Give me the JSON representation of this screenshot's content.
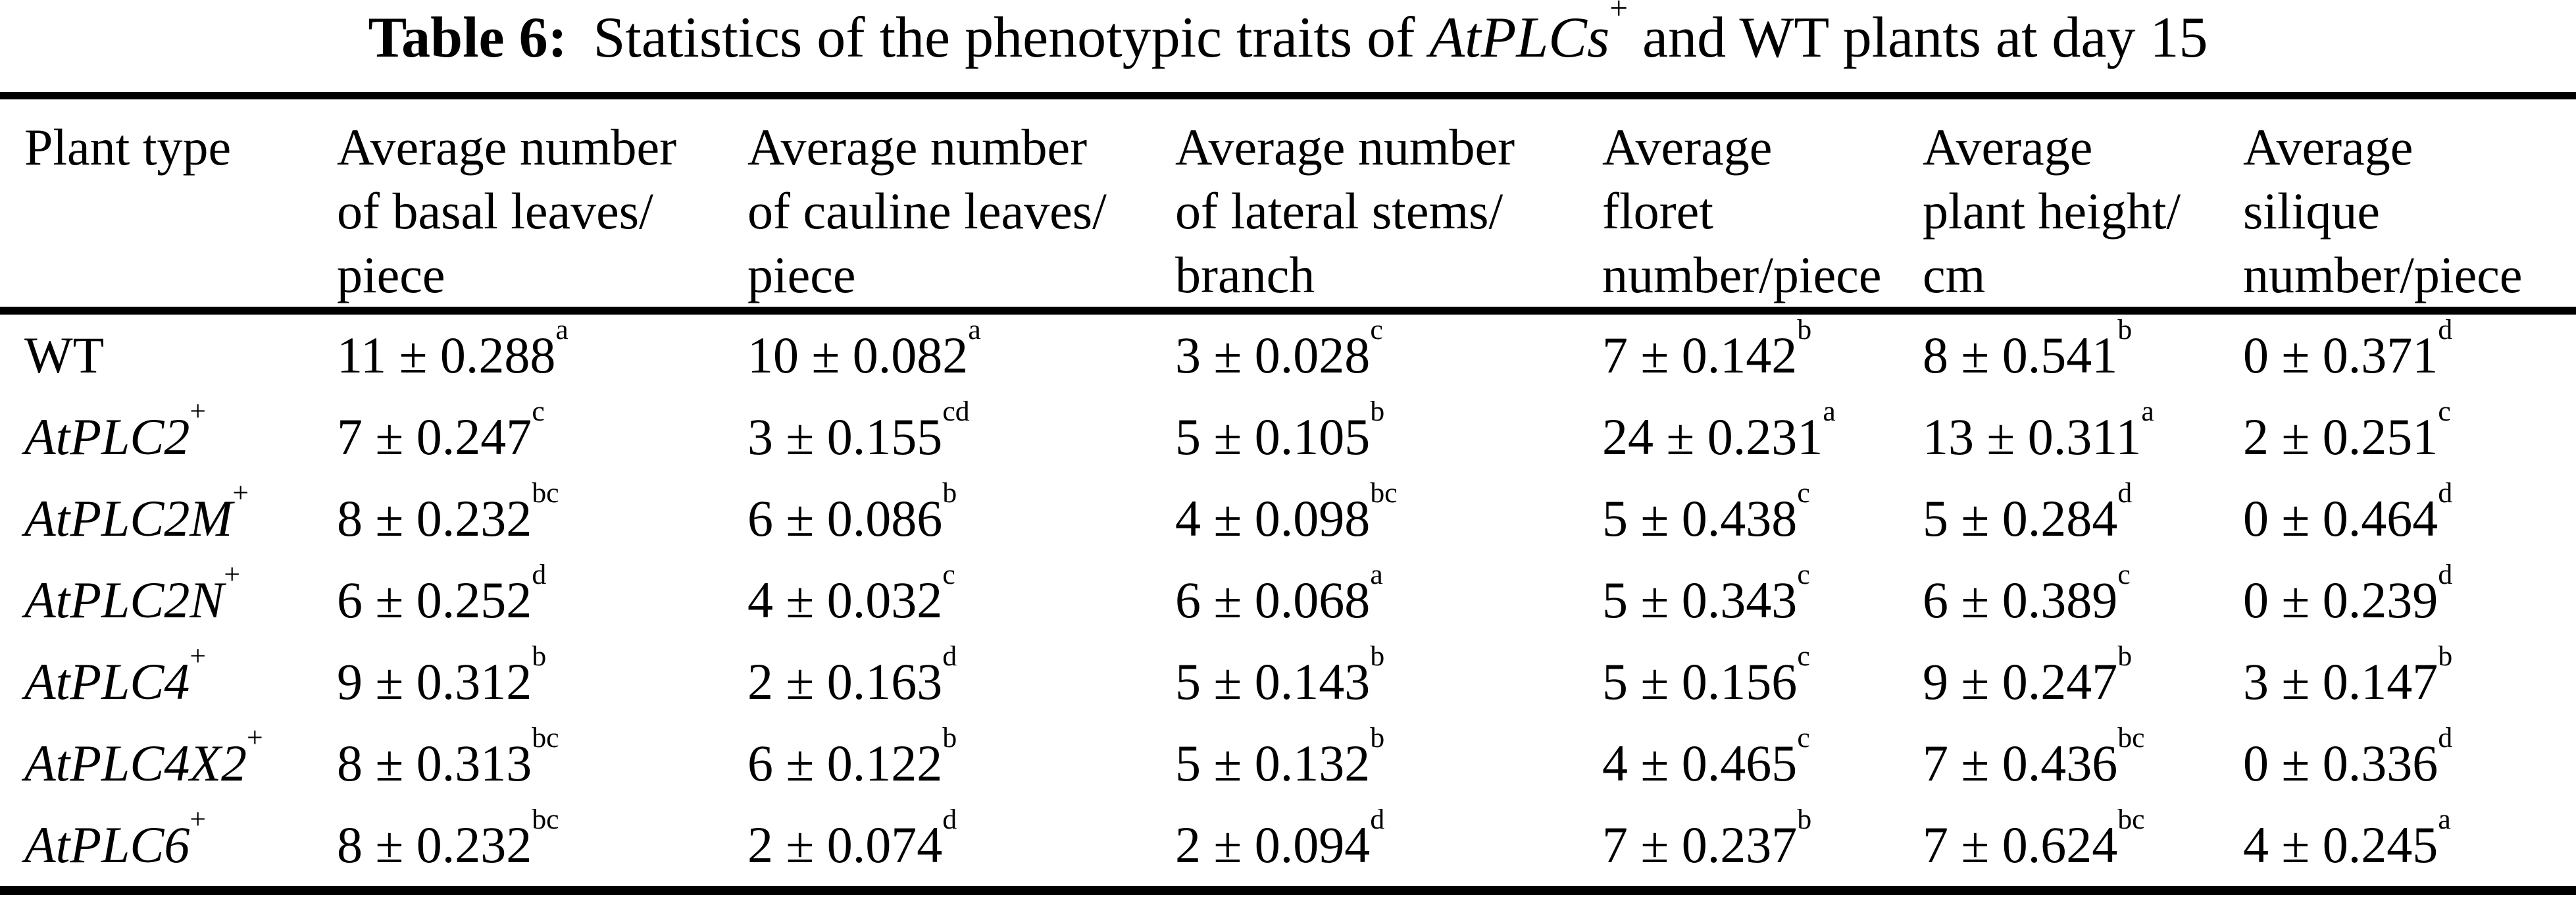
{
  "caption": {
    "label": "Table 6:",
    "text_before": "Statistics of the phenotypic traits of",
    "species": "AtPLCs",
    "species_sup": "+",
    "text_after": "and WT plants at day 15"
  },
  "colors": {
    "text": "#000000",
    "background": "#ffffff",
    "rule": "#000000"
  },
  "table": {
    "columns": [
      {
        "id": "plant-type",
        "lines": [
          "Plant type"
        ]
      },
      {
        "id": "basal-leaves",
        "lines": [
          "Average number",
          "of basal leaves/",
          "piece"
        ]
      },
      {
        "id": "cauline-leaves",
        "lines": [
          "Average number",
          "of cauline leaves/",
          "piece"
        ]
      },
      {
        "id": "lateral-stems",
        "lines": [
          "Average number",
          "of lateral stems/",
          "branch"
        ]
      },
      {
        "id": "floret-number",
        "lines": [
          "Average",
          "floret",
          "number/piece"
        ]
      },
      {
        "id": "plant-height",
        "lines": [
          "Average",
          "plant height/",
          "cm"
        ]
      },
      {
        "id": "silique-number",
        "lines": [
          "Average",
          "silique",
          "number/piece"
        ]
      }
    ],
    "rows": [
      {
        "plant": {
          "text": "WT",
          "sup": "",
          "italic": false
        },
        "cells": [
          {
            "value": "11 ± 0.288",
            "sup": "a"
          },
          {
            "value": "10 ± 0.082",
            "sup": "a"
          },
          {
            "value": "3 ± 0.028",
            "sup": "c"
          },
          {
            "value": "7 ± 0.142",
            "sup": "b"
          },
          {
            "value": "8 ± 0.541",
            "sup": "b"
          },
          {
            "value": "0 ± 0.371",
            "sup": "d"
          }
        ]
      },
      {
        "plant": {
          "text": "AtPLC2",
          "sup": "+",
          "italic": true
        },
        "cells": [
          {
            "value": "7 ± 0.247",
            "sup": "c"
          },
          {
            "value": "3 ± 0.155",
            "sup": "cd"
          },
          {
            "value": "5 ± 0.105",
            "sup": "b"
          },
          {
            "value": "24 ± 0.231",
            "sup": "a"
          },
          {
            "value": "13 ± 0.311",
            "sup": "a"
          },
          {
            "value": "2 ± 0.251",
            "sup": "c"
          }
        ]
      },
      {
        "plant": {
          "text": "AtPLC2M",
          "sup": "+",
          "italic": true
        },
        "cells": [
          {
            "value": "8 ± 0.232",
            "sup": "bc"
          },
          {
            "value": "6 ± 0.086",
            "sup": "b"
          },
          {
            "value": "4 ± 0.098",
            "sup": "bc"
          },
          {
            "value": "5 ± 0.438",
            "sup": "c"
          },
          {
            "value": "5 ± 0.284",
            "sup": "d"
          },
          {
            "value": "0 ± 0.464",
            "sup": "d"
          }
        ]
      },
      {
        "plant": {
          "text": "AtPLC2N",
          "sup": "+",
          "italic": true
        },
        "cells": [
          {
            "value": "6 ± 0.252",
            "sup": "d"
          },
          {
            "value": "4 ± 0.032",
            "sup": "c"
          },
          {
            "value": "6 ± 0.068",
            "sup": "a"
          },
          {
            "value": "5 ± 0.343",
            "sup": "c"
          },
          {
            "value": "6 ± 0.389",
            "sup": "c"
          },
          {
            "value": "0 ± 0.239",
            "sup": "d"
          }
        ]
      },
      {
        "plant": {
          "text": "AtPLC4",
          "sup": "+",
          "italic": true
        },
        "cells": [
          {
            "value": "9 ± 0.312",
            "sup": "b"
          },
          {
            "value": "2 ± 0.163",
            "sup": "d"
          },
          {
            "value": "5 ± 0.143",
            "sup": "b"
          },
          {
            "value": "5 ± 0.156",
            "sup": "c"
          },
          {
            "value": "9 ± 0.247",
            "sup": "b"
          },
          {
            "value": "3 ± 0.147",
            "sup": "b"
          }
        ]
      },
      {
        "plant": {
          "text": "AtPLC4X2",
          "sup": "+",
          "italic": true
        },
        "cells": [
          {
            "value": "8 ± 0.313",
            "sup": "bc"
          },
          {
            "value": "6 ± 0.122",
            "sup": "b"
          },
          {
            "value": "5 ± 0.132",
            "sup": "b"
          },
          {
            "value": "4 ± 0.465",
            "sup": "c"
          },
          {
            "value": "7 ± 0.436",
            "sup": "bc"
          },
          {
            "value": "0 ± 0.336",
            "sup": "d"
          }
        ]
      },
      {
        "plant": {
          "text": "AtPLC6",
          "sup": "+",
          "italic": true
        },
        "cells": [
          {
            "value": "8 ± 0.232",
            "sup": "bc"
          },
          {
            "value": "2 ± 0.074",
            "sup": "d"
          },
          {
            "value": "2 ± 0.094",
            "sup": "d"
          },
          {
            "value": "7 ± 0.237",
            "sup": "b"
          },
          {
            "value": "7 ± 0.624",
            "sup": "bc"
          },
          {
            "value": "4 ± 0.245",
            "sup": "a"
          }
        ]
      }
    ]
  }
}
